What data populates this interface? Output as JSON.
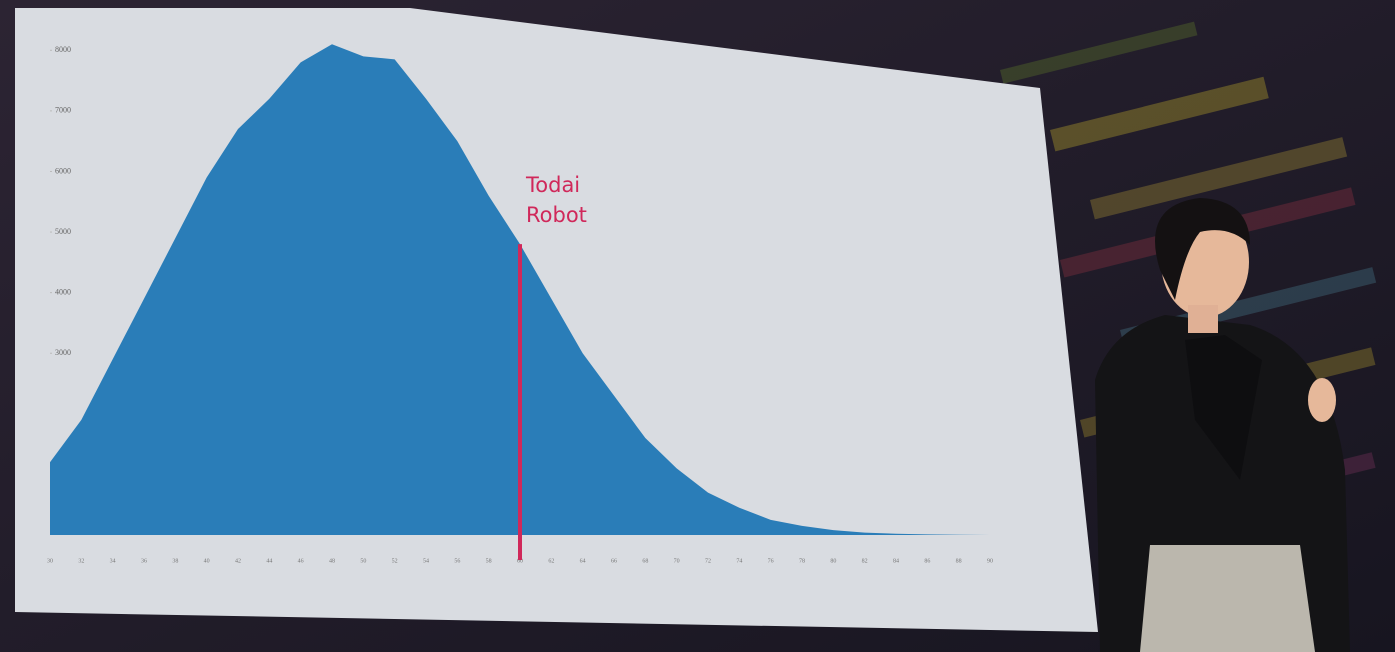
{
  "chart_data": {
    "type": "area",
    "categories": [
      "30",
      "32",
      "34",
      "36",
      "38",
      "40",
      "42",
      "44",
      "46",
      "48",
      "50",
      "52",
      "54",
      "56",
      "58",
      "60",
      "62",
      "64",
      "66",
      "68",
      "70",
      "72",
      "74",
      "76",
      "78",
      "80",
      "82",
      "84",
      "86",
      "88",
      "90"
    ],
    "values": [
      1200,
      1900,
      2900,
      3900,
      4900,
      5900,
      6700,
      7200,
      7800,
      8100,
      7900,
      7850,
      7200,
      6500,
      5600,
      4800,
      3900,
      3000,
      2300,
      1600,
      1100,
      700,
      450,
      250,
      150,
      80,
      40,
      20,
      10,
      5,
      0
    ],
    "color": "#2a7db8",
    "ylim": [
      0,
      8500
    ],
    "yticks": [
      3000,
      4000,
      5000,
      6000,
      7000,
      8000
    ],
    "annotation": {
      "lines": [
        "Todai",
        "Robot"
      ],
      "category": "60",
      "value": 4800,
      "color": "#d0285a"
    }
  }
}
